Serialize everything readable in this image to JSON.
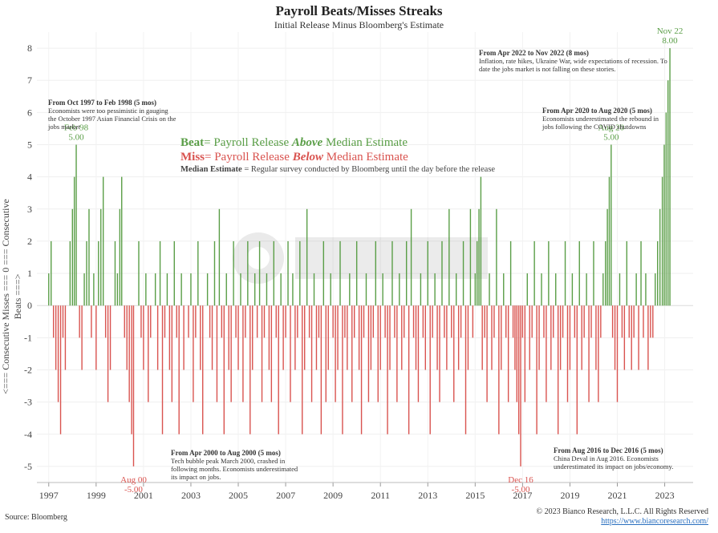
{
  "chart_data": {
    "type": "bar",
    "title": "Payroll Beats/Misses Streaks",
    "subtitle": "Initial Release Minus Bloomberg's Estimate",
    "ylabel": "<=== Consecutive Misses === 0 === Consecutive Beats ===>",
    "ylim": [
      -5.5,
      8.5
    ],
    "yticks": [
      8,
      7,
      6,
      5,
      4,
      3,
      2,
      1,
      0,
      -1,
      -2,
      -3,
      -4,
      -5
    ],
    "xlim": [
      1996.5,
      2024.2
    ],
    "xticks": [
      "1997",
      "1999",
      "2001",
      "2003",
      "2005",
      "2007",
      "2009",
      "2011",
      "2013",
      "2015",
      "2017",
      "2019",
      "2021",
      "2023"
    ],
    "grid": true,
    "series": [
      {
        "name": "Beat",
        "color": "#5a9e47",
        "values": [
          [
            1997.0,
            1
          ],
          [
            1997.1,
            2
          ],
          [
            1997.9,
            2
          ],
          [
            1998.0,
            3
          ],
          [
            1998.08,
            4
          ],
          [
            1998.16,
            5
          ],
          [
            1998.5,
            1
          ],
          [
            1998.6,
            2
          ],
          [
            1998.7,
            3
          ],
          [
            1998.9,
            1
          ],
          [
            1999.1,
            2
          ],
          [
            1999.2,
            3
          ],
          [
            1999.3,
            4
          ],
          [
            1999.8,
            2
          ],
          [
            1999.9,
            1
          ],
          [
            2000.0,
            3
          ],
          [
            2000.08,
            4
          ],
          [
            2000.8,
            2
          ],
          [
            2001.1,
            1
          ],
          [
            2001.5,
            1
          ],
          [
            2001.7,
            2
          ],
          [
            2002.0,
            1
          ],
          [
            2002.3,
            2
          ],
          [
            2002.6,
            1
          ],
          [
            2003.0,
            1
          ],
          [
            2003.3,
            2
          ],
          [
            2003.7,
            1
          ],
          [
            2004.0,
            2
          ],
          [
            2004.2,
            3
          ],
          [
            2004.5,
            1
          ],
          [
            2004.8,
            2
          ],
          [
            2005.1,
            1
          ],
          [
            2005.4,
            2
          ],
          [
            2005.7,
            1
          ],
          [
            2005.9,
            2
          ],
          [
            2006.2,
            1
          ],
          [
            2006.5,
            2
          ],
          [
            2006.8,
            1
          ],
          [
            2007.1,
            2
          ],
          [
            2007.3,
            1
          ],
          [
            2007.6,
            2
          ],
          [
            2007.9,
            3
          ],
          [
            2008.2,
            1
          ],
          [
            2008.6,
            2
          ],
          [
            2008.9,
            1
          ],
          [
            2009.3,
            2
          ],
          [
            2009.7,
            1
          ],
          [
            2010.0,
            2
          ],
          [
            2010.4,
            1
          ],
          [
            2010.8,
            2
          ],
          [
            2011.1,
            1
          ],
          [
            2011.5,
            2
          ],
          [
            2011.8,
            1
          ],
          [
            2012.1,
            2
          ],
          [
            2012.3,
            3
          ],
          [
            2012.7,
            1
          ],
          [
            2013.0,
            2
          ],
          [
            2013.3,
            1
          ],
          [
            2013.6,
            2
          ],
          [
            2013.9,
            3
          ],
          [
            2014.2,
            1
          ],
          [
            2014.5,
            2
          ],
          [
            2014.8,
            3
          ],
          [
            2015.0,
            1
          ],
          [
            2015.08,
            2
          ],
          [
            2015.16,
            3
          ],
          [
            2015.24,
            4
          ],
          [
            2015.6,
            1
          ],
          [
            2015.9,
            3
          ],
          [
            2016.2,
            1
          ],
          [
            2016.5,
            2
          ],
          [
            2017.2,
            1
          ],
          [
            2017.5,
            2
          ],
          [
            2017.8,
            1
          ],
          [
            2018.1,
            2
          ],
          [
            2018.4,
            1
          ],
          [
            2018.8,
            2
          ],
          [
            2019.1,
            1
          ],
          [
            2019.4,
            2
          ],
          [
            2019.7,
            1
          ],
          [
            2020.0,
            2
          ],
          [
            2020.4,
            1
          ],
          [
            2020.5,
            2
          ],
          [
            2020.58,
            3
          ],
          [
            2020.66,
            4
          ],
          [
            2020.74,
            5
          ],
          [
            2021.1,
            1
          ],
          [
            2021.4,
            2
          ],
          [
            2021.8,
            1
          ],
          [
            2022.0,
            2
          ],
          [
            2022.2,
            1
          ],
          [
            2022.6,
            1
          ],
          [
            2022.7,
            2
          ],
          [
            2022.8,
            3
          ],
          [
            2022.9,
            4
          ],
          [
            2022.98,
            5
          ],
          [
            2023.06,
            6
          ],
          [
            2023.14,
            7
          ],
          [
            2023.22,
            8
          ]
        ]
      },
      {
        "name": "Miss",
        "color": "#d9534f",
        "values": [
          [
            1997.2,
            -1
          ],
          [
            1997.3,
            -2
          ],
          [
            1997.4,
            -3
          ],
          [
            1997.5,
            -4
          ],
          [
            1997.6,
            -1
          ],
          [
            1997.7,
            -2
          ],
          [
            1998.3,
            -1
          ],
          [
            1998.4,
            -2
          ],
          [
            1998.8,
            -1
          ],
          [
            1999.0,
            -2
          ],
          [
            1999.4,
            -1
          ],
          [
            1999.5,
            -3
          ],
          [
            1999.6,
            -2
          ],
          [
            2000.2,
            -1
          ],
          [
            2000.3,
            -2
          ],
          [
            2000.4,
            -3
          ],
          [
            2000.5,
            -4
          ],
          [
            2000.58,
            -5
          ],
          [
            2000.9,
            -1
          ],
          [
            2001.0,
            -2
          ],
          [
            2001.2,
            -3
          ],
          [
            2001.3,
            -1
          ],
          [
            2001.6,
            -2
          ],
          [
            2001.8,
            -4
          ],
          [
            2001.9,
            -1
          ],
          [
            2002.1,
            -2
          ],
          [
            2002.2,
            -3
          ],
          [
            2002.4,
            -1
          ],
          [
            2002.5,
            -4
          ],
          [
            2002.7,
            -2
          ],
          [
            2002.9,
            -1
          ],
          [
            2003.1,
            -3
          ],
          [
            2003.2,
            -1
          ],
          [
            2003.4,
            -2
          ],
          [
            2003.5,
            -4
          ],
          [
            2003.8,
            -1
          ],
          [
            2003.9,
            -2
          ],
          [
            2004.1,
            -3
          ],
          [
            2004.3,
            -1
          ],
          [
            2004.4,
            -4
          ],
          [
            2004.6,
            -2
          ],
          [
            2004.7,
            -3
          ],
          [
            2004.9,
            -1
          ],
          [
            2005.0,
            -2
          ],
          [
            2005.2,
            -3
          ],
          [
            2005.3,
            -1
          ],
          [
            2005.5,
            -4
          ],
          [
            2005.6,
            -2
          ],
          [
            2005.8,
            -1
          ],
          [
            2006.0,
            -3
          ],
          [
            2006.1,
            -1
          ],
          [
            2006.3,
            -2
          ],
          [
            2006.4,
            -3
          ],
          [
            2006.6,
            -1
          ],
          [
            2006.7,
            -4
          ],
          [
            2006.9,
            -2
          ],
          [
            2007.0,
            -1
          ],
          [
            2007.2,
            -3
          ],
          [
            2007.4,
            -2
          ],
          [
            2007.5,
            -1
          ],
          [
            2007.7,
            -4
          ],
          [
            2007.8,
            -2
          ],
          [
            2008.0,
            -1
          ],
          [
            2008.1,
            -3
          ],
          [
            2008.3,
            -2
          ],
          [
            2008.4,
            -1
          ],
          [
            2008.5,
            -4
          ],
          [
            2008.7,
            -3
          ],
          [
            2008.8,
            -2
          ],
          [
            2009.0,
            -1
          ],
          [
            2009.1,
            -3
          ],
          [
            2009.2,
            -2
          ],
          [
            2009.4,
            -4
          ],
          [
            2009.5,
            -1
          ],
          [
            2009.6,
            -2
          ],
          [
            2009.8,
            -3
          ],
          [
            2009.9,
            -1
          ],
          [
            2010.1,
            -2
          ],
          [
            2010.2,
            -4
          ],
          [
            2010.3,
            -1
          ],
          [
            2010.5,
            -3
          ],
          [
            2010.6,
            -2
          ],
          [
            2010.7,
            -1
          ],
          [
            2010.9,
            -3
          ],
          [
            2011.0,
            -2
          ],
          [
            2011.2,
            -1
          ],
          [
            2011.3,
            -4
          ],
          [
            2011.4,
            -2
          ],
          [
            2011.6,
            -1
          ],
          [
            2011.7,
            -3
          ],
          [
            2011.9,
            -2
          ],
          [
            2012.0,
            -1
          ],
          [
            2012.2,
            -4
          ],
          [
            2012.4,
            -1
          ],
          [
            2012.5,
            -2
          ],
          [
            2012.6,
            -3
          ],
          [
            2012.8,
            -1
          ],
          [
            2012.9,
            -2
          ],
          [
            2013.1,
            -4
          ],
          [
            2013.2,
            -1
          ],
          [
            2013.4,
            -2
          ],
          [
            2013.5,
            -3
          ],
          [
            2013.7,
            -1
          ],
          [
            2013.8,
            -2
          ],
          [
            2014.0,
            -1
          ],
          [
            2014.1,
            -3
          ],
          [
            2014.3,
            -2
          ],
          [
            2014.4,
            -1
          ],
          [
            2014.6,
            -4
          ],
          [
            2014.7,
            -2
          ],
          [
            2014.9,
            -1
          ],
          [
            2015.3,
            -2
          ],
          [
            2015.4,
            -1
          ],
          [
            2015.5,
            -3
          ],
          [
            2015.7,
            -2
          ],
          [
            2015.8,
            -1
          ],
          [
            2016.0,
            -4
          ],
          [
            2016.1,
            -2
          ],
          [
            2016.3,
            -1
          ],
          [
            2016.4,
            -3
          ],
          [
            2016.6,
            -1
          ],
          [
            2016.68,
            -2
          ],
          [
            2016.76,
            -3
          ],
          [
            2016.84,
            -4
          ],
          [
            2016.92,
            -5
          ],
          [
            2017.0,
            -1
          ],
          [
            2017.1,
            -3
          ],
          [
            2017.3,
            -2
          ],
          [
            2017.4,
            -1
          ],
          [
            2017.6,
            -4
          ],
          [
            2017.7,
            -2
          ],
          [
            2017.9,
            -1
          ],
          [
            2018.0,
            -3
          ],
          [
            2018.2,
            -2
          ],
          [
            2018.3,
            -1
          ],
          [
            2018.5,
            -4
          ],
          [
            2018.6,
            -2
          ],
          [
            2018.7,
            -1
          ],
          [
            2018.9,
            -3
          ],
          [
            2019.0,
            -2
          ],
          [
            2019.2,
            -1
          ],
          [
            2019.3,
            -4
          ],
          [
            2019.5,
            -2
          ],
          [
            2019.6,
            -1
          ],
          [
            2019.8,
            -3
          ],
          [
            2019.9,
            -1
          ],
          [
            2020.1,
            -2
          ],
          [
            2020.2,
            -3
          ],
          [
            2020.3,
            -1
          ],
          [
            2020.8,
            -1
          ],
          [
            2020.9,
            -2
          ],
          [
            2021.0,
            -3
          ],
          [
            2021.2,
            -1
          ],
          [
            2021.3,
            -2
          ],
          [
            2021.5,
            -1
          ],
          [
            2021.6,
            -2
          ],
          [
            2021.7,
            -1
          ],
          [
            2021.9,
            -2
          ],
          [
            2022.1,
            -1
          ],
          [
            2022.3,
            -2
          ],
          [
            2022.4,
            -1
          ],
          [
            2022.5,
            -1
          ]
        ]
      }
    ],
    "annotations": [
      {
        "label": "Feb 98",
        "value": "5.00",
        "x": 1998.16,
        "y": 5,
        "color": "#5a9e47"
      },
      {
        "label": "Aug 00",
        "value": "-5.00",
        "x": 2000.58,
        "y": -5,
        "color": "#d9534f"
      },
      {
        "label": "Dec 16",
        "value": "-5.00",
        "x": 2016.92,
        "y": -5,
        "color": "#d9534f"
      },
      {
        "label": "Aug 20",
        "value": "5.00",
        "x": 2020.74,
        "y": 5,
        "color": "#5a9e47"
      },
      {
        "label": "Nov 22",
        "value": "8.00",
        "x": 2023.22,
        "y": 8,
        "color": "#5a9e47"
      }
    ]
  },
  "legend": {
    "beat_word": "Beat",
    "beat_text": "= Payroll Release ",
    "beat_emph": "Above",
    "beat_tail": " Median Estimate",
    "miss_word": "Miss",
    "miss_text": "= Payroll Release ",
    "miss_emph": "Below",
    "miss_tail": " Median Estimate",
    "median_word": "Median Estimate",
    "median_text": " = Regular survey conducted by Bloomberg until the day before the release"
  },
  "notes": {
    "n1997": {
      "head": "From Oct 1997 to Feb 1998 (5 mos)",
      "body": "Economists were too pessimistic in gauging the October 1997 Asian Financial Crisis on the jobs market"
    },
    "n2000": {
      "head": "From Apr 2000 to Aug 2000 (5 mos)",
      "body": "Tech bubble peak March 2000, crashed in following months. Economists underestimated its impact on jobs."
    },
    "n2016": {
      "head": "From Aug 2016 to Dec 2016 (5 mos)",
      "body": "China Deval in Aug 2016. Economists underestimated its impact on jobs/economy."
    },
    "n2020": {
      "head": "From Apr 2020 to Aug 2020 (5 mos)",
      "body": "Economists underestimated the rebound in jobs following the COVID shutdowns"
    },
    "n2022": {
      "head": "From Apr 2022 to Nov 2022 (8 mos)",
      "body": "Inflation, rate hikes, Ukraine War, wide expectations of recession. To date the jobs market is not falling on these stories."
    }
  },
  "footer": {
    "source": "Source: Bloomberg",
    "copyright": "© 2023 Bianco Research, L.L.C. All Rights Reserved",
    "url": "https://www.biancoresearch.com/"
  }
}
